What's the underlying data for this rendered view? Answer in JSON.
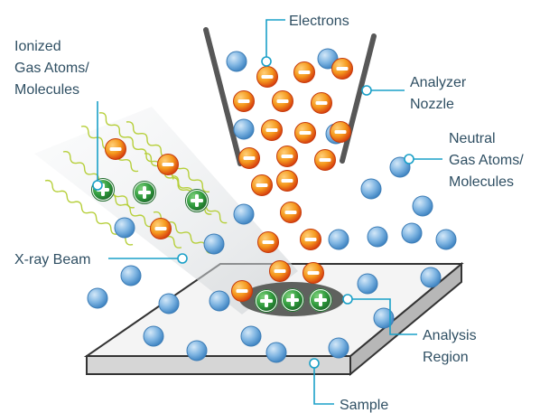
{
  "labels": {
    "electrons": "Electrons",
    "ionized": [
      "Ionized",
      "Gas Atoms/",
      "Molecules"
    ],
    "analyzer_nozzle": [
      "Analyzer",
      "Nozzle"
    ],
    "neutral": [
      "Neutral",
      "Gas Atoms/",
      "Molecules"
    ],
    "xray_beam": "X-ray Beam",
    "analysis_region": [
      "Analysis",
      "Region"
    ],
    "sample": "Sample"
  },
  "colors": {
    "electron": "#f28a12",
    "neutral_atom": "#5a9fd6",
    "ion": "#2f8c3c",
    "xray_wave": "#b6cf3a",
    "leader": "#1aa0c8",
    "nozzle": "#5a5a5a",
    "sample_top": "#f2f2f2",
    "analysis_spot": "#5d5f5b"
  },
  "icons": {
    "electron": "minus-sign",
    "ion": "plus-sign"
  }
}
